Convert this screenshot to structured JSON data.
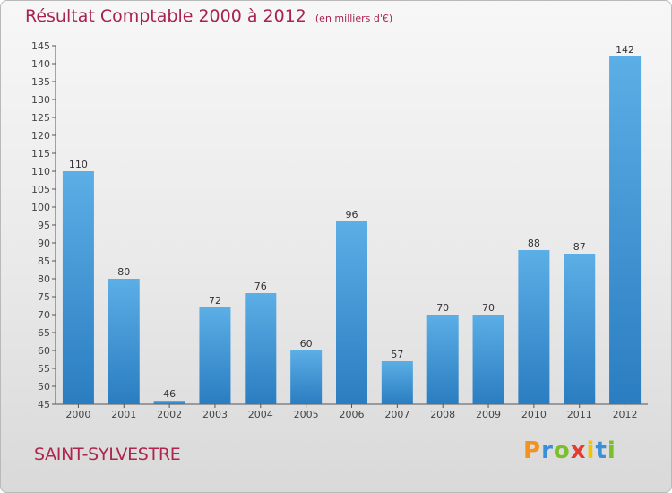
{
  "header": {
    "title": "Résultat Comptable 2000 à 2012",
    "subtitle": "(en milliers d'€)"
  },
  "commune": "SAINT-SYLVESTRE",
  "logo": {
    "letters": [
      "P",
      "r",
      "o",
      "x",
      "i",
      "t",
      "i"
    ],
    "colors": [
      "#f39221",
      "#3a8fd8",
      "#7bbf2a",
      "#e43c2f",
      "#f5c400",
      "#3a8fd8",
      "#7bbf2a"
    ]
  },
  "colors": {
    "bar_light": "#5caee6",
    "bar_dark": "#2a7dc0"
  },
  "chart_data": {
    "type": "bar",
    "title": "Résultat Comptable 2000 à 2012",
    "ylabel": "(en milliers d'€)",
    "xlabel": "",
    "categories": [
      "2000",
      "2001",
      "2002",
      "2003",
      "2004",
      "2005",
      "2006",
      "2007",
      "2008",
      "2009",
      "2010",
      "2011",
      "2012"
    ],
    "values": [
      110,
      80,
      46,
      72,
      76,
      60,
      96,
      57,
      70,
      70,
      88,
      87,
      142
    ],
    "ylim": [
      45,
      145
    ],
    "yticks": [
      45,
      50,
      55,
      60,
      65,
      70,
      75,
      80,
      85,
      90,
      95,
      100,
      105,
      110,
      115,
      120,
      125,
      130,
      135,
      140,
      145
    ],
    "grid": false,
    "legend": "none"
  }
}
